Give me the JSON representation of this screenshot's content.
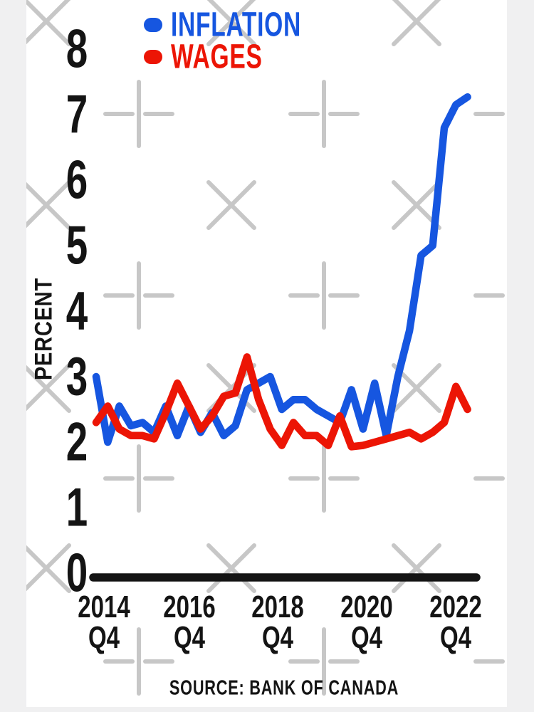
{
  "legend": {
    "items": [
      {
        "label": "INFLATION",
        "color": "#1656e0"
      },
      {
        "label": "WAGES",
        "color": "#ec1505"
      }
    ]
  },
  "y_axis": {
    "label": "PERCENT",
    "tick_labels": [
      "8",
      "7",
      "6",
      "5",
      "4",
      "3",
      "2",
      "1",
      "0"
    ]
  },
  "x_axis": {
    "tick_labels": [
      {
        "year": "2014",
        "quarter": "Q4"
      },
      {
        "year": "2016",
        "quarter": "Q4"
      },
      {
        "year": "2018",
        "quarter": "Q4"
      },
      {
        "year": "2020",
        "quarter": "Q4"
      },
      {
        "year": "2022",
        "quarter": "Q4"
      }
    ]
  },
  "footer": {
    "source": "SOURCE: BANK OF CANADA"
  },
  "watermark": {
    "color": "#c7c7c7"
  },
  "chart_data": {
    "type": "line",
    "title": "",
    "ylabel": "PERCENT",
    "ylim": [
      0,
      8
    ],
    "grid": false,
    "legend_position": "top-left",
    "x_unit": "quarterly",
    "x_start": "2014 Q4",
    "x_end": "2022 Q4",
    "x_points": 33,
    "x_tick_positions_quarters": [
      0,
      8,
      16,
      24,
      32
    ],
    "series": [
      {
        "name": "INFLATION",
        "color": "#1656e0",
        "values": [
          3.0,
          2.0,
          2.55,
          2.25,
          2.3,
          2.15,
          2.55,
          2.1,
          2.55,
          2.15,
          2.45,
          2.1,
          2.25,
          2.8,
          2.9,
          3.0,
          2.5,
          2.65,
          2.65,
          2.5,
          2.4,
          2.3,
          2.8,
          2.2,
          2.9,
          2.1,
          3.0,
          3.7,
          4.85,
          5.0,
          6.8,
          7.15,
          7.27
        ]
      },
      {
        "name": "WAGES",
        "color": "#ec1505",
        "values": [
          2.3,
          2.55,
          2.2,
          2.1,
          2.1,
          2.05,
          2.45,
          2.9,
          2.55,
          2.2,
          2.4,
          2.7,
          2.75,
          3.3,
          2.65,
          2.2,
          1.95,
          2.3,
          2.1,
          2.1,
          1.95,
          2.4,
          1.93,
          1.95,
          2.0,
          2.05,
          2.1,
          2.15,
          2.05,
          2.15,
          2.3,
          2.85,
          2.5
        ]
      }
    ],
    "source": "SOURCE: BANK OF CANADA"
  }
}
